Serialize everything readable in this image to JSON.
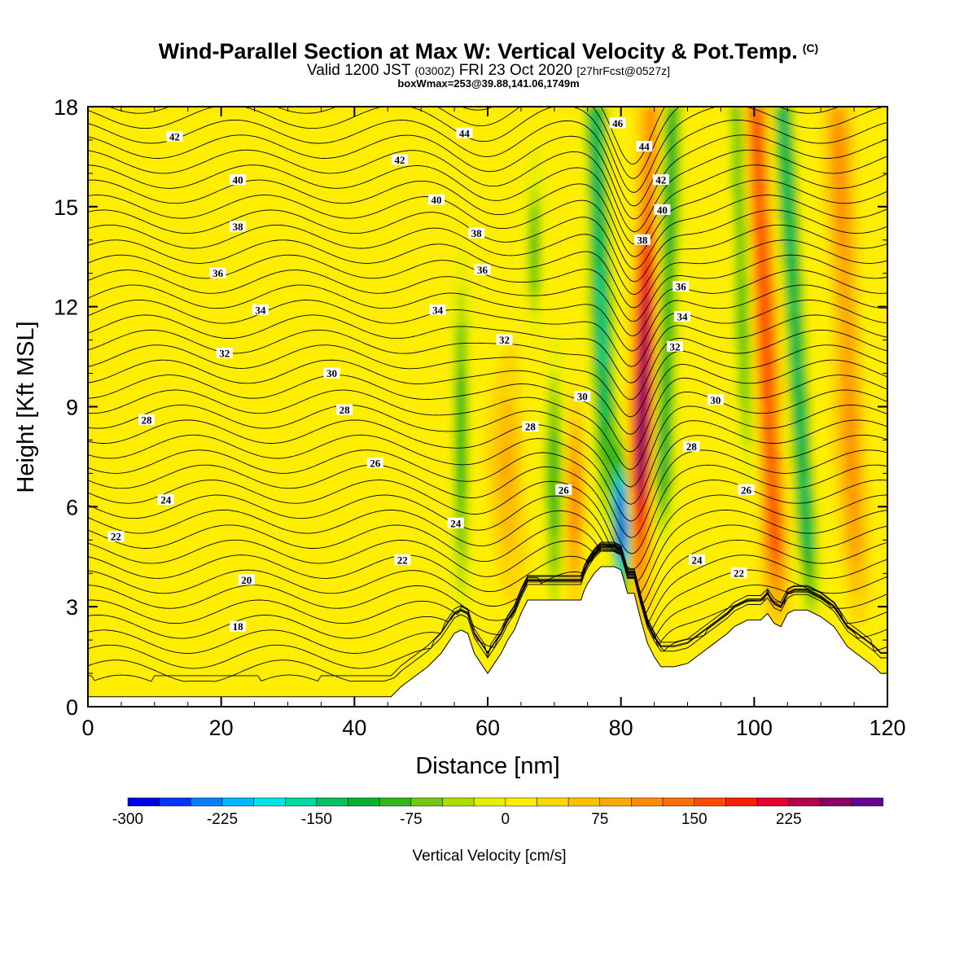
{
  "title": {
    "main": "Wind-Parallel Section at Max W: Vertical Velocity & Pot.Temp.",
    "copyright": "(C)",
    "valid_prefix": "Valid 1200 JST",
    "valid_utc": "(0300Z)",
    "valid_date": "FRI 23 Oct 2020",
    "forecast": "[27hrFcst@0527z]",
    "box_max": "boxWmax=253@39.88,141.06,1749m"
  },
  "chart_data": {
    "type": "heatmap",
    "xlabel": "Distance [nm]",
    "ylabel": "Height [Kft MSL]",
    "xlim": [
      0,
      120
    ],
    "ylim": [
      0,
      18
    ],
    "x_ticks": [
      "0",
      "20",
      "40",
      "60",
      "80",
      "100",
      "120"
    ],
    "y_ticks": [
      "0",
      "3",
      "6",
      "9",
      "12",
      "15",
      "18"
    ],
    "colorbar": {
      "label": "Vertical Velocity [cm/s]",
      "tick_labels": [
        "-300",
        "-225",
        "-150",
        "-75",
        "0",
        "75",
        "150",
        "225"
      ],
      "tick_values": [
        -300,
        -225,
        -150,
        -75,
        0,
        75,
        150,
        225
      ],
      "range": [
        -300,
        275
      ],
      "step": 25,
      "colors": [
        "#0000e6",
        "#0037f5",
        "#0080ff",
        "#00b8ff",
        "#00e6e6",
        "#00d9a0",
        "#00c060",
        "#00b030",
        "#30b818",
        "#70c810",
        "#b0dc00",
        "#e8f000",
        "#ffee00",
        "#ffd700",
        "#ffc000",
        "#ffa800",
        "#ff8c00",
        "#ff6e00",
        "#ff4a00",
        "#ff1e00",
        "#e6002e",
        "#b4004a",
        "#8c0064",
        "#640096"
      ]
    },
    "background_value_range": [
      0,
      25
    ],
    "updraft_core": {
      "x": 83,
      "max_w": 253
    },
    "downdraft_core": {
      "x": 81,
      "min_w": -300
    },
    "terrain_profile": {
      "x": [
        0,
        45.5,
        47,
        49,
        51,
        53,
        54,
        55,
        56,
        57,
        58,
        59,
        60,
        61,
        62,
        63,
        64,
        65,
        66,
        74,
        74.5,
        75,
        76,
        77,
        78,
        79,
        80,
        81,
        82,
        83,
        84,
        85,
        86,
        88,
        90,
        92,
        94,
        96,
        97,
        99,
        101,
        102,
        103,
        104,
        105,
        106,
        108,
        110,
        112,
        113,
        114,
        116,
        118,
        119,
        120
      ],
      "height_kft": [
        0.3,
        0.3,
        0.6,
        0.9,
        1.2,
        1.6,
        1.9,
        2.2,
        2.3,
        2.2,
        1.6,
        1.3,
        1.0,
        1.3,
        1.6,
        2.0,
        2.3,
        2.8,
        3.2,
        3.2,
        3.5,
        3.7,
        4.0,
        4.2,
        4.2,
        4.2,
        4.1,
        3.4,
        3.4,
        2.6,
        1.9,
        1.5,
        1.2,
        1.2,
        1.3,
        1.6,
        1.9,
        2.2,
        2.4,
        2.6,
        2.6,
        2.8,
        2.5,
        2.4,
        2.8,
        2.9,
        2.9,
        2.7,
        2.4,
        2.1,
        1.8,
        1.5,
        1.2,
        1.0,
        1.0
      ]
    },
    "contour_labels": [
      {
        "text": "42",
        "x": 13,
        "y": 17.1
      },
      {
        "text": "44",
        "x": 56.5,
        "y": 17.2
      },
      {
        "text": "46",
        "x": 79.5,
        "y": 17.5
      },
      {
        "text": "44",
        "x": 83.5,
        "y": 16.8
      },
      {
        "text": "42",
        "x": 46.8,
        "y": 16.4
      },
      {
        "text": "42",
        "x": 86,
        "y": 15.8
      },
      {
        "text": "40",
        "x": 22.5,
        "y": 15.8
      },
      {
        "text": "40",
        "x": 52.3,
        "y": 15.2
      },
      {
        "text": "40",
        "x": 86.2,
        "y": 14.9
      },
      {
        "text": "38",
        "x": 22.5,
        "y": 14.4
      },
      {
        "text": "38",
        "x": 58.3,
        "y": 14.2
      },
      {
        "text": "38",
        "x": 83.2,
        "y": 14.0
      },
      {
        "text": "36",
        "x": 19.5,
        "y": 13.0
      },
      {
        "text": "36",
        "x": 59.2,
        "y": 13.1
      },
      {
        "text": "36",
        "x": 89,
        "y": 12.6
      },
      {
        "text": "34",
        "x": 25.9,
        "y": 11.9
      },
      {
        "text": "34",
        "x": 52.5,
        "y": 11.9
      },
      {
        "text": "34",
        "x": 89.2,
        "y": 11.7
      },
      {
        "text": "32",
        "x": 20.5,
        "y": 10.6
      },
      {
        "text": "32",
        "x": 62.5,
        "y": 11.0
      },
      {
        "text": "32",
        "x": 88.1,
        "y": 10.8
      },
      {
        "text": "30",
        "x": 36.6,
        "y": 10.0
      },
      {
        "text": "30",
        "x": 74.2,
        "y": 9.3
      },
      {
        "text": "30",
        "x": 94.2,
        "y": 9.2
      },
      {
        "text": "28",
        "x": 8.8,
        "y": 8.6
      },
      {
        "text": "28",
        "x": 38.5,
        "y": 8.9
      },
      {
        "text": "28",
        "x": 66.4,
        "y": 8.4
      },
      {
        "text": "28",
        "x": 90.6,
        "y": 7.8
      },
      {
        "text": "26",
        "x": 43.1,
        "y": 7.3
      },
      {
        "text": "26",
        "x": 71.4,
        "y": 6.5
      },
      {
        "text": "26",
        "x": 98.8,
        "y": 6.5
      },
      {
        "text": "24",
        "x": 11.7,
        "y": 6.2
      },
      {
        "text": "24",
        "x": 55.2,
        "y": 5.5
      },
      {
        "text": "24",
        "x": 91.4,
        "y": 4.4
      },
      {
        "text": "22",
        "x": 4.2,
        "y": 5.1
      },
      {
        "text": "22",
        "x": 47.2,
        "y": 4.4
      },
      {
        "text": "22",
        "x": 97.7,
        "y": 4.0
      },
      {
        "text": "20",
        "x": 23.8,
        "y": 3.8
      },
      {
        "text": "18",
        "x": 22.5,
        "y": 2.4
      }
    ]
  }
}
